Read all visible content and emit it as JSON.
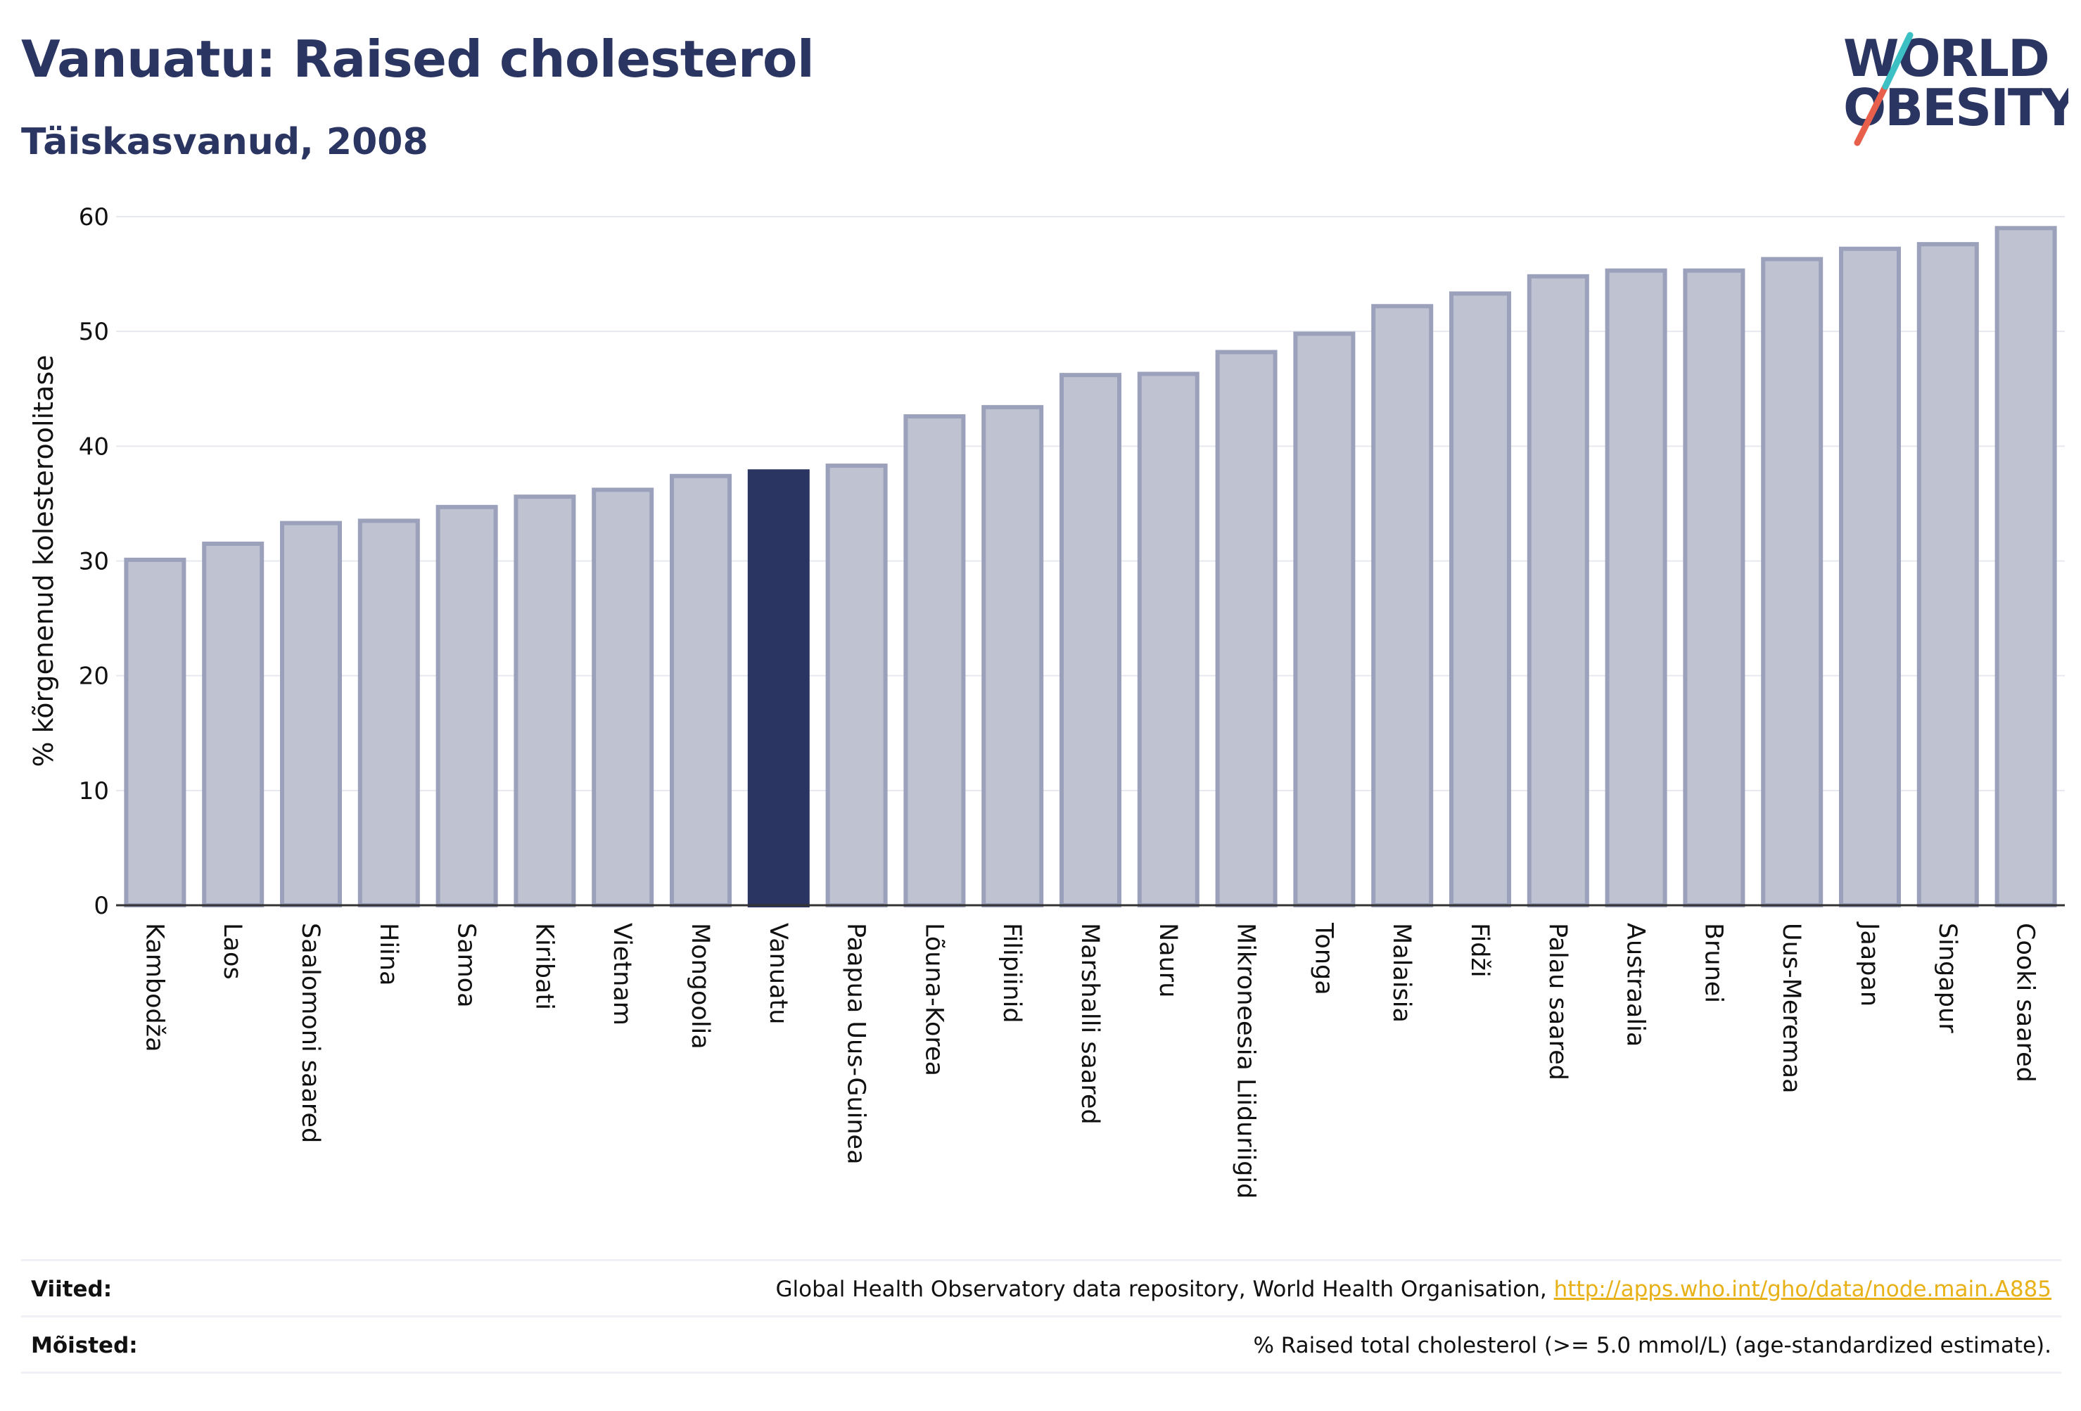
{
  "header": {
    "title": "Vanuatu: Raised cholesterol",
    "subtitle": "Täiskasvanud, 2008"
  },
  "logo": {
    "line1": "WORLD",
    "line2": "OBESITY",
    "colors": {
      "text": "#2b3562",
      "slash_red": "#e8604c",
      "slash_teal": "#3cc0c4"
    }
  },
  "colors": {
    "bar_default": "#bfc2d1",
    "bar_default_stroke": "#9ba1ba",
    "bar_highlight": "#2b3562",
    "grid": "#e6e8ef",
    "axis": "#333333"
  },
  "chart_data": {
    "type": "bar",
    "ylabel": "% kõrgenenud kolesteroolitase",
    "xlabel": "",
    "ylim": [
      0,
      60
    ],
    "yticks": [
      0,
      10,
      20,
      30,
      40,
      50,
      60
    ],
    "grid": true,
    "highlight": "Vanuatu",
    "categories": [
      "Kambodža",
      "Laos",
      "Saalomoni saared",
      "Hiina",
      "Samoa",
      "Kiribati",
      "Vietnam",
      "Mongoolia",
      "Vanuatu",
      "Paapua Uus-Guinea",
      "Lõuna-Korea",
      "Filipiinid",
      "Marshalli saared",
      "Nauru",
      "Mikroneesia Liiduriigid",
      "Tonga",
      "Malaisia",
      "Fidži",
      "Palau saared",
      "Austraalia",
      "Brunei",
      "Uus-Meremaa",
      "Jaapan",
      "Singapur",
      "Cooki saared"
    ],
    "values": [
      30.1,
      31.5,
      33.3,
      33.5,
      34.7,
      35.6,
      36.2,
      37.4,
      37.8,
      38.3,
      42.6,
      43.4,
      46.2,
      46.3,
      48.2,
      49.8,
      52.2,
      53.3,
      54.8,
      55.3,
      55.3,
      56.3,
      57.2,
      57.6,
      59.0
    ]
  },
  "footer": {
    "sources_label": "Viited:",
    "sources_text": "Global Health Observatory data repository, World Health Organisation, ",
    "sources_link": "http://apps.who.int/gho/data/node.main.A885",
    "definitions_label": "Mõisted:",
    "definitions_text": "% Raised total cholesterol (>= 5.0 mmol/L) (age-standardized estimate)."
  }
}
